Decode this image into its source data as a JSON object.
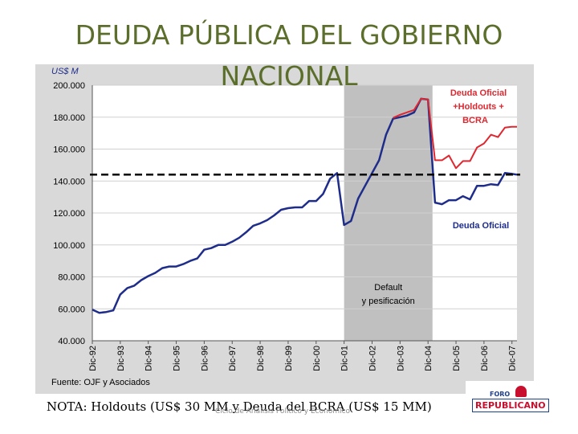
{
  "slide": {
    "title": "DEUDA PÚBLICA DEL GOBIERNO NACIONAL",
    "note": "NOTA: Holdouts (US$ 30 MM y Deuda del BCRA (US$ 15 MM)",
    "footer": "Ciclo de Análisis Político y Económico",
    "logo_top": "FORO",
    "logo_main": "REPUBLICANO"
  },
  "colors": {
    "panel": "#d9d9d9",
    "shade": "#c0c0c0",
    "official": "#1f2d8a",
    "with_holdouts": "#e0262e",
    "title": "#5b6e2b"
  },
  "chart_data": {
    "type": "line",
    "ylabel": "US$ M",
    "ylim": [
      40000,
      200000
    ],
    "yticks": [
      40000,
      60000,
      80000,
      100000,
      120000,
      140000,
      160000,
      180000,
      200000
    ],
    "ytick_labels": [
      "40.000",
      "60.000",
      "80.000",
      "100.000",
      "120.000",
      "140.000",
      "160.000",
      "180.000",
      "200.000"
    ],
    "x_tick_labels": [
      "Dic-92",
      "Dic-93",
      "Dic-94",
      "Dic-95",
      "Dic-96",
      "Dic-97",
      "Dic-98",
      "Dic-99",
      "Dic-00",
      "Dic-01",
      "Dic-02",
      "Dic-03",
      "Dic-04",
      "Dic-05",
      "Dic-06",
      "Dic-07"
    ],
    "xlim": [
      1992.92,
      2008.1
    ],
    "source": "Fuente: OJF y Asociados",
    "shaded_region": {
      "x_start": 2001.92,
      "x_end": 2005.08,
      "label_lines": [
        "Default",
        "y pesificación"
      ]
    },
    "reference_line": {
      "y": 144000
    },
    "series": [
      {
        "name": "Deuda Oficial",
        "color": "#1f2d8a",
        "x": [
          1992.92,
          1993.17,
          1993.42,
          1993.67,
          1993.92,
          1994.17,
          1994.42,
          1994.67,
          1994.92,
          1995.17,
          1995.42,
          1995.67,
          1995.92,
          1996.17,
          1996.42,
          1996.67,
          1996.92,
          1997.17,
          1997.42,
          1997.67,
          1997.92,
          1998.17,
          1998.42,
          1998.67,
          1998.92,
          1999.17,
          1999.42,
          1999.67,
          1999.92,
          2000.17,
          2000.42,
          2000.67,
          2000.92,
          2001.17,
          2001.42,
          2001.67,
          2001.92,
          2002.17,
          2002.42,
          2002.67,
          2002.92,
          2003.17,
          2003.42,
          2003.67,
          2003.92,
          2004.17,
          2004.42,
          2004.67,
          2004.92,
          2005.17,
          2005.42,
          2005.67,
          2005.92,
          2006.17,
          2006.42,
          2006.67,
          2006.92,
          2007.17,
          2007.42,
          2007.67,
          2007.92,
          2008.1
        ],
        "y": [
          59500,
          57500,
          58000,
          59000,
          69000,
          73000,
          74500,
          78000,
          80500,
          82500,
          85500,
          86500,
          86500,
          88000,
          90000,
          91500,
          97000,
          98000,
          100000,
          100000,
          102000,
          104500,
          108000,
          112000,
          113500,
          115500,
          118500,
          122000,
          123000,
          123500,
          123500,
          127500,
          127500,
          132000,
          141500,
          145000,
          112500,
          115000,
          129000,
          137000,
          145000,
          153000,
          169000,
          179000,
          180000,
          181000,
          183000,
          191500,
          191000,
          126500,
          125500,
          128000,
          128000,
          130500,
          128500,
          137000,
          137000,
          138000,
          137500,
          145000,
          144500,
          144000
        ]
      },
      {
        "name": "Deuda Oficial +Holdouts + BCRA",
        "color": "#e0262e",
        "x": [
          2003.67,
          2003.92,
          2004.17,
          2004.42,
          2004.67,
          2004.92,
          2005.17,
          2005.42,
          2005.67,
          2005.92,
          2006.17,
          2006.42,
          2006.67,
          2006.92,
          2007.17,
          2007.42,
          2007.67,
          2007.92,
          2008.1
        ],
        "y": [
          179500,
          181500,
          183000,
          184500,
          191500,
          191000,
          153000,
          153000,
          156000,
          148000,
          152500,
          152500,
          161000,
          163500,
          169000,
          167500,
          173500,
          174000,
          174000
        ]
      }
    ],
    "legend": [
      {
        "text_lines": [
          "Deuda Oficial",
          "+Holdouts +",
          "BCRA"
        ],
        "color": "#e0262e",
        "placement": "top-right"
      },
      {
        "text_lines": [
          "Deuda Oficial"
        ],
        "color": "#1f2d8a",
        "placement": "right"
      }
    ]
  }
}
